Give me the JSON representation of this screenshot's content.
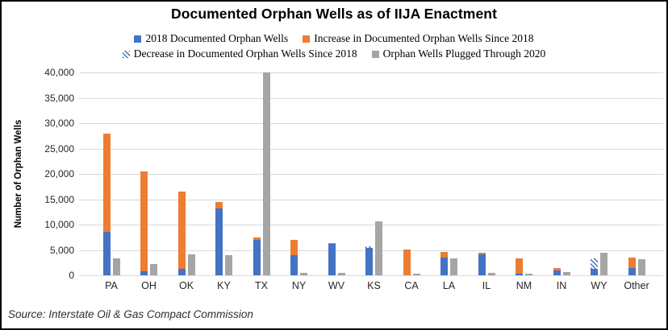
{
  "title": "Documented Orphan Wells as of IIJA Enactment",
  "source": "Source: Interstate Oil & Gas Compact Commission",
  "colors": {
    "blue_2018": "#4472C4",
    "orange_increase": "#ED7D31",
    "gray_plugged": "#A5A5A5",
    "gridline": "#D9D9D9"
  },
  "legend": [
    {
      "label": "2018 Documented Orphan Wells",
      "swatch": "solid",
      "color": "#4472C4",
      "row": 1
    },
    {
      "label": "Increase in Documented Orphan Wells Since 2018",
      "swatch": "solid",
      "color": "#ED7D31",
      "row": 1
    },
    {
      "label": "Decrease in Documented Orphan Wells Since 2018",
      "swatch": "hatch",
      "color": "#4472C4",
      "row": 2
    },
    {
      "label": "Orphan Wells Plugged Through 2020",
      "swatch": "solid",
      "color": "#A5A5A5",
      "row": 2
    }
  ],
  "chart_data": {
    "type": "bar",
    "subtype": "stacked-plus-grouped",
    "title": "Documented Orphan Wells as of IIJA Enactment",
    "xlabel": "",
    "ylabel": "Number of Orphan Wells",
    "ylim": [
      0,
      40000
    ],
    "ytick_step": 5000,
    "grid": true,
    "legend_position": "top",
    "categories": [
      "PA",
      "OH",
      "OK",
      "KY",
      "TX",
      "NY",
      "WV",
      "KS",
      "CA",
      "LA",
      "IL",
      "NM",
      "IN",
      "WY",
      "Other"
    ],
    "series": [
      {
        "name": "2018 Documented Orphan Wells",
        "color": "#4472C4",
        "pattern": "solid",
        "stack": "documented",
        "values": [
          8500,
          800,
          1200,
          13100,
          7000,
          3900,
          6200,
          5400,
          0,
          3500,
          4200,
          300,
          1000,
          1300,
          1500
        ]
      },
      {
        "name": "Increase in Documented Orphan Wells Since 2018",
        "color": "#ED7D31",
        "pattern": "solid",
        "stack": "documented",
        "values": [
          19500,
          19700,
          15300,
          1400,
          400,
          3100,
          200,
          0,
          5100,
          1100,
          200,
          3000,
          400,
          0,
          2000
        ]
      },
      {
        "name": "Decrease in Documented Orphan Wells Since 2018",
        "color": "#4472C4",
        "pattern": "hatch",
        "stack": "documented",
        "values": [
          0,
          0,
          0,
          0,
          0,
          0,
          0,
          300,
          0,
          0,
          0,
          0,
          0,
          2000,
          0
        ]
      },
      {
        "name": "Orphan Wells Plugged Through 2020",
        "color": "#A5A5A5",
        "pattern": "solid",
        "stack": "plugged",
        "values": [
          3300,
          2300,
          4100,
          4000,
          40000,
          500,
          400,
          10600,
          300,
          3300,
          400,
          300,
          700,
          4400,
          3200
        ]
      }
    ],
    "note": "TX plugged-wells bar is clipped at the 40,000 axis maximum"
  }
}
